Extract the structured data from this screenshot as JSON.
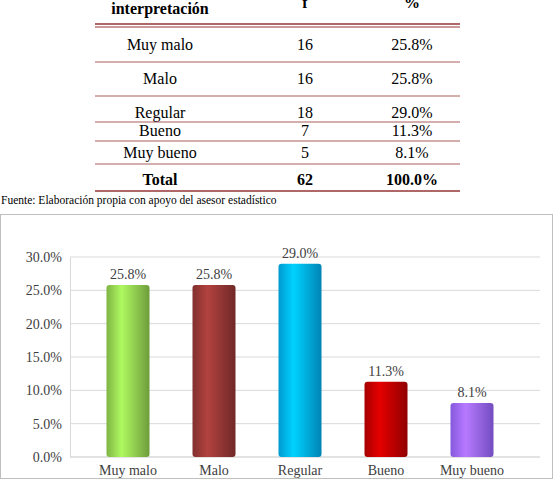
{
  "table": {
    "header": [
      "interpretación",
      "f",
      "%"
    ],
    "rows": [
      [
        "Muy malo",
        "16",
        "25.8%"
      ],
      [
        "Malo",
        "16",
        "25.8%"
      ],
      [
        "Regular",
        "18",
        "29.0%"
      ],
      [
        "Bueno",
        "7",
        "11.3%"
      ],
      [
        "Muy bueno",
        "5",
        "8.1%"
      ]
    ],
    "total": [
      "Total",
      "62",
      "100.0%"
    ]
  },
  "source": "Fuente: Elaboración propia con apoyo del asesor estadístico",
  "chart_data": {
    "type": "bar",
    "categories": [
      "Muy malo",
      "Malo",
      "Regular",
      "Bueno",
      "Muy bueno"
    ],
    "values": [
      25.8,
      25.8,
      29.0,
      11.3,
      8.1
    ],
    "value_labels": [
      "25.8%",
      "25.8%",
      "29.0%",
      "11.3%",
      "8.1%"
    ],
    "colors": [
      "#92d050",
      "#953735",
      "#00b0f0",
      "#c00000",
      "#9966ff"
    ],
    "ylim": [
      0,
      30
    ],
    "yticks": [
      {
        "value": 0,
        "label": "0.0%"
      },
      {
        "value": 5,
        "label": "5.0%"
      },
      {
        "value": 10,
        "label": "10.0%"
      },
      {
        "value": 15,
        "label": "15.0%"
      },
      {
        "value": 20,
        "label": "20.0%"
      },
      {
        "value": 25,
        "label": "25.0%"
      },
      {
        "value": 30,
        "label": "30.0%"
      }
    ],
    "grid": true,
    "data_labels": true
  }
}
